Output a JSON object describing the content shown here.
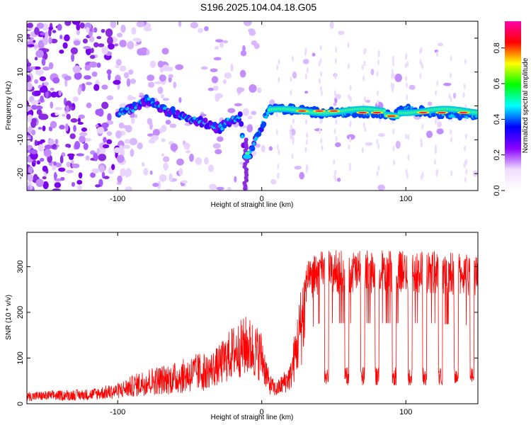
{
  "title": "S196.2025.104.04.18.G05",
  "chart_data": [
    {
      "type": "heatmap",
      "xlabel": "Height of straight line (km)",
      "ylabel": "Frequency (Hz)",
      "xlim": [
        -163,
        150
      ],
      "ylim": [
        -25,
        25
      ],
      "xticks": [
        -100,
        0,
        100
      ],
      "yticks": [
        -20,
        -10,
        0,
        10,
        20
      ],
      "colorbar": {
        "label": "Normalized spectral amplitude",
        "range": [
          0,
          0.95
        ],
        "ticks": [
          0.0,
          0.2,
          0.4,
          0.6,
          0.8
        ],
        "colormap": [
          "#ffffff",
          "#f0dcff",
          "#8800ff",
          "#0000ff",
          "#00ffff",
          "#00ff00",
          "#ffff00",
          "#ff0000",
          "#ff00aa"
        ]
      },
      "ridge": {
        "description_points": [
          [
            -100,
            -2
          ],
          [
            -90,
            -1
          ],
          [
            -80,
            2
          ],
          [
            -70,
            -1
          ],
          [
            -60,
            -2
          ],
          [
            -50,
            -4
          ],
          [
            -40,
            -5
          ],
          [
            -30,
            -7
          ],
          [
            -25,
            -5
          ],
          [
            -20,
            -4
          ],
          [
            -15,
            -3
          ],
          [
            -12,
            -15
          ],
          [
            -8,
            -14
          ],
          [
            5,
            -1
          ],
          [
            20,
            -1
          ],
          [
            40,
            -2
          ],
          [
            60,
            -2
          ],
          [
            80,
            -2
          ],
          [
            90,
            -3
          ],
          [
            100,
            -1
          ],
          [
            120,
            -2
          ],
          [
            150,
            -3
          ]
        ]
      }
    },
    {
      "type": "line",
      "xlabel": "Height of straight line (km)",
      "ylabel": "SNR (10 * v/v)",
      "xlim": [
        -163,
        150
      ],
      "ylim": [
        0,
        375
      ],
      "xticks": [
        -100,
        0,
        100
      ],
      "yticks": [
        0,
        100,
        200,
        300
      ],
      "series": [
        {
          "color": "#ff0000",
          "envelope": [
            [
              -163,
              20
            ],
            [
              -120,
              25
            ],
            [
              -100,
              35
            ],
            [
              -80,
              60
            ],
            [
              -60,
              70
            ],
            [
              -40,
              90
            ],
            [
              -30,
              110
            ],
            [
              -20,
              150
            ],
            [
              -10,
              170
            ],
            [
              0,
              140
            ],
            [
              5,
              60
            ],
            [
              10,
              40
            ],
            [
              20,
              80
            ],
            [
              25,
              180
            ],
            [
              30,
              290
            ],
            [
              40,
              320
            ],
            [
              60,
              320
            ],
            [
              80,
              320
            ],
            [
              100,
              320
            ],
            [
              120,
              320
            ],
            [
              150,
              310
            ]
          ],
          "dips": [
            45,
            59,
            70,
            80,
            92,
            103,
            113,
            124,
            135,
            146
          ]
        }
      ]
    }
  ]
}
